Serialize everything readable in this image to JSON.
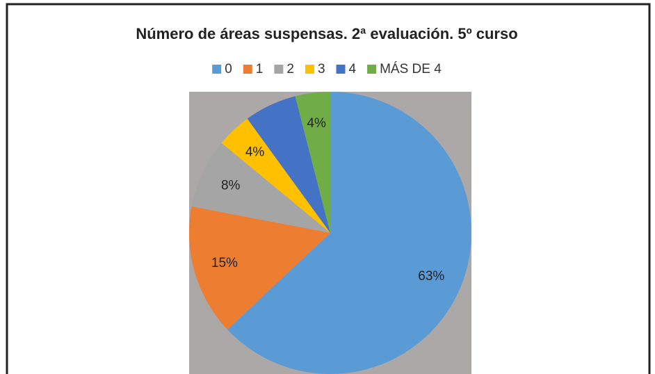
{
  "chart_data": {
    "type": "pie",
    "title": "Número de áreas suspensas. 2ª evaluación. 5º curso",
    "categories": [
      "0",
      "1",
      "2",
      "3",
      "4",
      "MÁS DE 4"
    ],
    "values": [
      63,
      15,
      8,
      4,
      6,
      4
    ],
    "value_labels": [
      "63%",
      "15%",
      "8%",
      "4%",
      null,
      "4%"
    ],
    "colors": [
      "#5b9bd5",
      "#ed7d31",
      "#a5a5a5",
      "#ffc000",
      "#4472c4",
      "#70ad47"
    ],
    "legend": "top"
  }
}
